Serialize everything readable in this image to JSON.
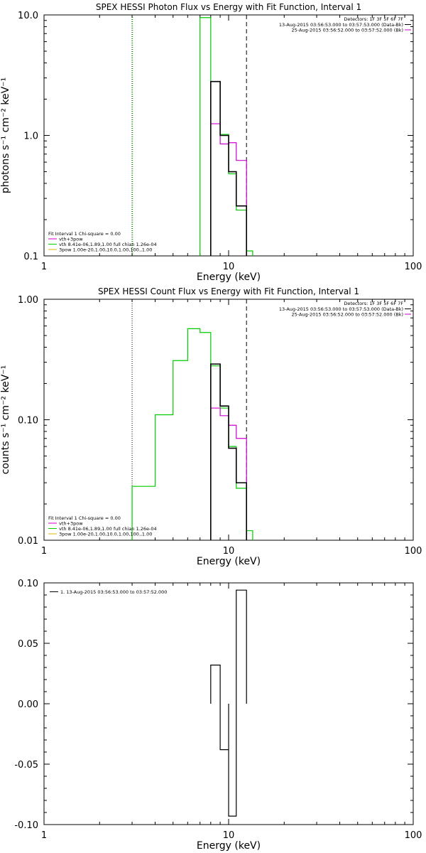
{
  "chart_data": [
    {
      "type": "line",
      "title": "SPEX HESSI Photon Flux vs Energy with Fit Function, Interval 1",
      "xlabel": "Energy (keV)",
      "ylabel": "photons s⁻¹ cm⁻² keV⁻¹",
      "xscale": "log",
      "yscale": "log",
      "xlim": [
        1,
        100
      ],
      "ylim": [
        0.1,
        10
      ],
      "xticks": [
        {
          "v": 1,
          "label": "1"
        },
        {
          "v": 10,
          "label": "10"
        },
        {
          "v": 100,
          "label": "100"
        }
      ],
      "yticks": [
        {
          "v": 0.1,
          "label": "0.1"
        },
        {
          "v": 1,
          "label": "1.0"
        },
        {
          "v": 10,
          "label": "10.0"
        }
      ],
      "vlines": [
        {
          "x": 3.0,
          "style": "dotted",
          "color": "#000000"
        },
        {
          "x": 3.02,
          "style": "dotted",
          "color": "#00cc00"
        },
        {
          "x": 12.5,
          "style": "dashed",
          "color": "#000000"
        }
      ],
      "series": [
        {
          "name": "Data",
          "color": "#000000",
          "edges": [
            8.0,
            9.0,
            10.0,
            11.0,
            12.5
          ],
          "values": [
            2.8,
            1.0,
            0.5,
            0.26
          ]
        },
        {
          "name": "vth+3pow",
          "color": "#cc00cc",
          "edges": [
            8.0,
            9.0,
            10.0,
            11.0,
            12.5
          ],
          "values": [
            1.25,
            0.85,
            0.87,
            0.62
          ]
        },
        {
          "name": "vth",
          "color": "#00cc00",
          "edges": [
            7.0,
            8.0,
            9.0,
            10.0,
            11.0,
            12.5,
            13.5
          ],
          "values": [
            9.5,
            2.8,
            1.02,
            0.48,
            0.24,
            0.11
          ]
        }
      ],
      "legend": {
        "placement": "bottom-left",
        "header": "Fit Interval 1   Chi-square = 0.00",
        "items": [
          {
            "text": "vth+3pow",
            "color": "#cc00cc"
          },
          {
            "text": "vth 8.41e-06,1.89,1.00  full chian 1.26e-04",
            "color": "#00cc00"
          },
          {
            "text": "3pow 1.00e-20,1.00,10.0,1.00,100.,1.00",
            "color": "#ddbb00"
          }
        ]
      },
      "info": {
        "placement": "top-right",
        "detectors": "Detectors: 1F 3F 5F 6F 7F",
        "lines": [
          {
            "text": "13-Aug-2015 03:56:53.000 to 03:57:53.000 (Data-Bk)",
            "color": "#000000"
          },
          {
            "text": "25-Aug-2015 03:56:52.000 to 03:57:52.000 (Bk)",
            "color": "#cc00cc"
          }
        ]
      }
    },
    {
      "type": "line",
      "title": "SPEX HESSI Count Flux vs Energy with Fit Function, Interval 1",
      "xlabel": "Energy (keV)",
      "ylabel": "counts s⁻¹ cm⁻² keV⁻¹",
      "xscale": "log",
      "yscale": "log",
      "xlim": [
        1,
        100
      ],
      "ylim": [
        0.01,
        1
      ],
      "xticks": [
        {
          "v": 1,
          "label": "1"
        },
        {
          "v": 10,
          "label": "10"
        },
        {
          "v": 100,
          "label": "100"
        }
      ],
      "yticks": [
        {
          "v": 0.01,
          "label": "0.01"
        },
        {
          "v": 0.1,
          "label": "0.10"
        },
        {
          "v": 1,
          "label": "1.00"
        }
      ],
      "vlines": [
        {
          "x": 3.0,
          "style": "dotted",
          "color": "#000000"
        },
        {
          "x": 12.5,
          "style": "dashed",
          "color": "#000000"
        }
      ],
      "series": [
        {
          "name": "Data",
          "color": "#000000",
          "edges": [
            8.0,
            9.0,
            10.0,
            11.0,
            12.5
          ],
          "values": [
            0.29,
            0.13,
            0.058,
            0.03
          ]
        },
        {
          "name": "vth+3pow",
          "color": "#cc00cc",
          "edges": [
            8.0,
            9.0,
            10.0,
            11.0,
            12.5
          ],
          "values": [
            0.125,
            0.108,
            0.09,
            0.07
          ]
        },
        {
          "name": "vth",
          "color": "#00cc00",
          "edges": [
            3.0,
            4.0,
            5.0,
            6.0,
            7.0,
            8.0,
            9.0,
            10.0,
            11.0,
            12.5,
            13.5
          ],
          "values": [
            0.028,
            0.11,
            0.31,
            0.57,
            0.53,
            0.28,
            0.125,
            0.06,
            0.027,
            0.012
          ]
        }
      ],
      "legend": {
        "placement": "bottom-left",
        "header": "Fit Interval 1   Chi-square = 0.00",
        "items": [
          {
            "text": "vth+3pow",
            "color": "#cc00cc"
          },
          {
            "text": "vth 8.41e-06,1.89,1.00  full chian 1.26e-04",
            "color": "#00cc00"
          },
          {
            "text": "3pow 1.00e-20,1.00,10.0,1.00,100.,1.00",
            "color": "#ddbb00"
          }
        ]
      },
      "info": {
        "placement": "top-right",
        "detectors": "Detectors: 1F 3F 5F 6F 7F",
        "lines": [
          {
            "text": "13-Aug-2015 03:56:53.000 to 03:57:53.000 (Data-Bk)",
            "color": "#000000"
          },
          {
            "text": "25-Aug-2015 03:56:52.000 to 03:57:52.000 (Bk)",
            "color": "#cc00cc"
          }
        ]
      }
    },
    {
      "type": "line",
      "title": "",
      "xlabel": "Energy (keV)",
      "ylabel": "",
      "xscale": "log",
      "yscale": "linear",
      "xlim": [
        1,
        100
      ],
      "ylim": [
        -0.1,
        0.1
      ],
      "xticks": [
        {
          "v": 1,
          "label": "1"
        },
        {
          "v": 10,
          "label": "10"
        },
        {
          "v": 100,
          "label": "100"
        }
      ],
      "yticks": [
        {
          "v": -0.1,
          "label": "-0.10"
        },
        {
          "v": -0.05,
          "label": "-0.05"
        },
        {
          "v": 0,
          "label": "0.00"
        },
        {
          "v": 0.05,
          "label": "0.05"
        },
        {
          "v": 0.1,
          "label": "0.10"
        }
      ],
      "vlines": [],
      "series": [
        {
          "name": "1. 13-Aug-2015 03:56:53.000 to 03:57:52.000",
          "color": "#000000",
          "edges": [
            8.0,
            9.0,
            10.0,
            11.0,
            12.5
          ],
          "values": [
            0.032,
            -0.038,
            -0.093,
            0.094
          ],
          "style": "residual"
        }
      ],
      "legend": {
        "placement": "top-left",
        "header": "",
        "items": [
          {
            "text": "1. 13-Aug-2015 03:56:53.000 to 03:57:52.000",
            "color": "#000000"
          }
        ]
      },
      "info": null
    }
  ]
}
